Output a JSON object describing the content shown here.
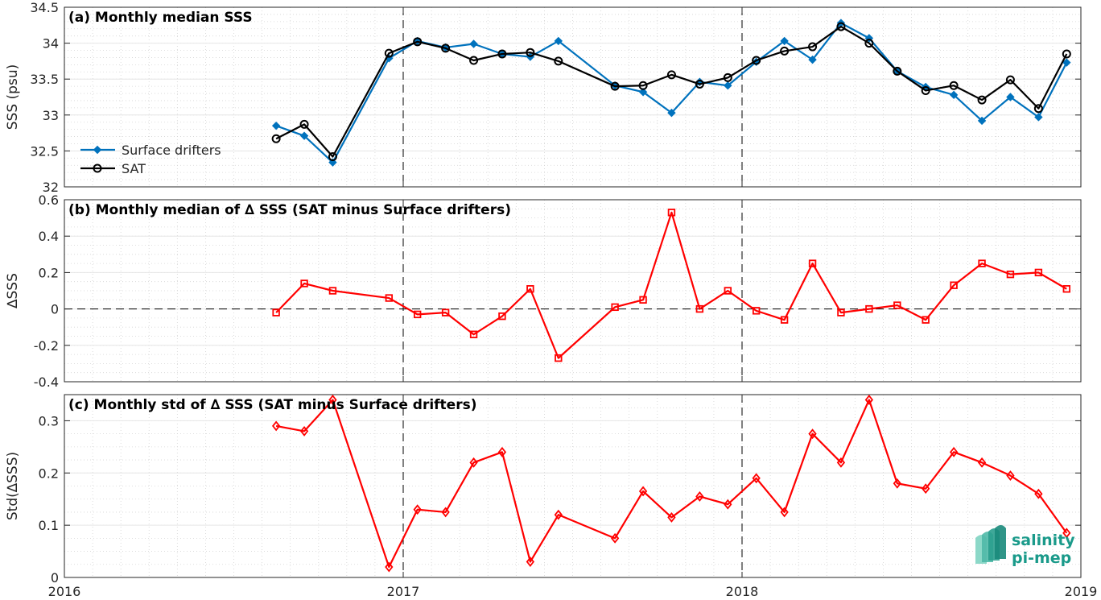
{
  "chart_data": [
    {
      "type": "line",
      "title": "(a) Monthly median SSS",
      "ylabel": "SSS (psu)",
      "xlabel": "",
      "xlim": [
        2016,
        2019
      ],
      "ylim": [
        32,
        34.5
      ],
      "yticks": [
        32,
        32.5,
        33,
        33.5,
        34,
        34.5
      ],
      "yticklabels": [
        "32",
        "32.5",
        "33",
        "33.5",
        "34",
        "34.5"
      ],
      "grid": true,
      "legend": "left",
      "x": [
        2016.625,
        2016.708,
        2016.792,
        2016.958,
        2017.042,
        2017.125,
        2017.208,
        2017.292,
        2017.375,
        2017.458,
        2017.625,
        2017.708,
        2017.792,
        2017.875,
        2017.958,
        2018.042,
        2018.125,
        2018.208,
        2018.292,
        2018.375,
        2018.458,
        2018.542,
        2018.625,
        2018.708,
        2018.792,
        2018.875,
        2018.958
      ],
      "series": [
        {
          "name": "Surface drifters",
          "color": "#0072bd",
          "marker": "diamond",
          "values": [
            32.85,
            32.71,
            32.34,
            33.79,
            34.03,
            33.94,
            33.99,
            33.85,
            33.81,
            34.03,
            33.41,
            33.32,
            33.03,
            33.46,
            33.41,
            33.74,
            34.03,
            33.77,
            34.28,
            34.07,
            33.61,
            33.39,
            33.28,
            32.92,
            33.25,
            32.97,
            33.73
          ]
        },
        {
          "name": "SAT",
          "color": "#000000",
          "marker": "circle",
          "values": [
            32.67,
            32.87,
            32.42,
            33.86,
            34.02,
            33.93,
            33.76,
            33.85,
            33.87,
            33.75,
            33.4,
            33.41,
            33.56,
            33.43,
            33.52,
            33.76,
            33.89,
            33.95,
            34.23,
            34.0,
            33.61,
            33.34,
            33.41,
            33.21,
            33.49,
            33.09,
            33.85
          ]
        }
      ],
      "vlines": [
        2017,
        2018
      ]
    },
    {
      "type": "line",
      "title": "(b) Monthly median of ∆ SSS (SAT minus Surface drifters)",
      "ylabel": "∆SSS",
      "xlabel": "",
      "xlim": [
        2016,
        2019
      ],
      "ylim": [
        -0.4,
        0.6
      ],
      "yticks": [
        -0.4,
        -0.2,
        0,
        0.2,
        0.4,
        0.6
      ],
      "yticklabels": [
        "-0.4",
        "-0.2",
        "0",
        "0.2",
        "0.4",
        "0.6"
      ],
      "grid": true,
      "x": [
        2016.625,
        2016.708,
        2016.792,
        2016.958,
        2017.042,
        2017.125,
        2017.208,
        2017.292,
        2017.375,
        2017.458,
        2017.625,
        2017.708,
        2017.792,
        2017.875,
        2017.958,
        2018.042,
        2018.125,
        2018.208,
        2018.292,
        2018.375,
        2018.458,
        2018.542,
        2018.625,
        2018.708,
        2018.792,
        2018.875,
        2018.958
      ],
      "series": [
        {
          "name": "",
          "color": "#ff0000",
          "marker": "square",
          "values": [
            -0.02,
            0.14,
            0.1,
            0.06,
            -0.03,
            -0.02,
            -0.14,
            -0.04,
            0.11,
            -0.27,
            0.01,
            0.05,
            0.53,
            0.0,
            0.1,
            -0.01,
            -0.06,
            0.25,
            -0.02,
            0.0,
            0.02,
            -0.06,
            0.13,
            0.25,
            0.19,
            0.2,
            0.11
          ]
        }
      ],
      "hline": 0,
      "vlines": [
        2017,
        2018
      ]
    },
    {
      "type": "line",
      "title": "(c) Monthly std of ∆ SSS (SAT minus Surface drifters)",
      "ylabel": "Std(∆SSS)",
      "xlabel": "",
      "xlim": [
        2016,
        2019
      ],
      "ylim": [
        0,
        0.35
      ],
      "yticks": [
        0,
        0.1,
        0.2,
        0.3
      ],
      "yticklabels": [
        "0",
        "0.1",
        "0.2",
        "0.3"
      ],
      "xticks": [
        2016,
        2017,
        2018,
        2019
      ],
      "xticklabels": [
        "2016",
        "2017",
        "2018",
        "2019"
      ],
      "grid": true,
      "x": [
        2016.625,
        2016.708,
        2016.792,
        2016.958,
        2017.042,
        2017.125,
        2017.208,
        2017.292,
        2017.375,
        2017.458,
        2017.625,
        2017.708,
        2017.792,
        2017.875,
        2017.958,
        2018.042,
        2018.125,
        2018.208,
        2018.292,
        2018.375,
        2018.458,
        2018.542,
        2018.625,
        2018.708,
        2018.792,
        2018.875,
        2018.958
      ],
      "series": [
        {
          "name": "",
          "color": "#ff0000",
          "marker": "diamond",
          "values": [
            0.29,
            0.28,
            0.34,
            0.02,
            0.13,
            0.125,
            0.22,
            0.24,
            0.03,
            0.12,
            0.075,
            0.165,
            0.115,
            0.155,
            0.14,
            0.19,
            0.125,
            0.275,
            0.22,
            0.34,
            0.18,
            0.17,
            0.24,
            0.22,
            0.195,
            0.16,
            0.085
          ]
        }
      ],
      "vlines": [
        2017,
        2018
      ]
    }
  ],
  "logo": {
    "line1": "salinity",
    "line2": "pi-mep"
  }
}
